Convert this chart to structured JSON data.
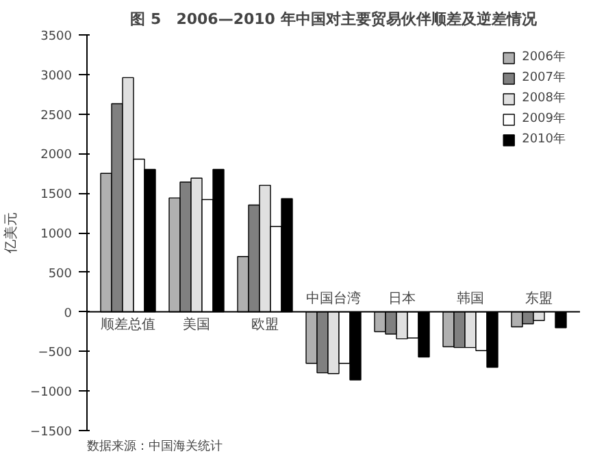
{
  "chart_data": {
    "type": "bar",
    "title": "图 5　2006—2010 年中国对主要贸易伙伴顺差及逆差情况",
    "ylabel": "亿美元",
    "categories": [
      "顺差总值",
      "美国",
      "欧盟",
      "中国台湾",
      "日本",
      "韩国",
      "东盟"
    ],
    "series": [
      {
        "name": "2006年",
        "color": "#b0b0b0",
        "values": [
          1750,
          1440,
          700,
          -650,
          -250,
          -440,
          -190
        ]
      },
      {
        "name": "2007年",
        "color": "#808080",
        "values": [
          2630,
          1640,
          1350,
          -770,
          -280,
          -450,
          -150
        ]
      },
      {
        "name": "2008年",
        "color": "#e0e0e0",
        "values": [
          2960,
          1690,
          1600,
          -780,
          -340,
          -450,
          -110
        ]
      },
      {
        "name": "2009年",
        "color": "#ffffff",
        "values": [
          1930,
          1420,
          1080,
          -650,
          -330,
          -490,
          null
        ]
      },
      {
        "name": "2010年",
        "color": "#000000",
        "values": [
          1800,
          1800,
          1430,
          -860,
          -570,
          -700,
          -200
        ]
      }
    ],
    "ylim": [
      -1500,
      3500
    ],
    "yticks": [
      -1500,
      -1000,
      -500,
      0,
      500,
      1000,
      1500,
      2000,
      2500,
      3000,
      3500
    ],
    "grid": false,
    "legend": "top right",
    "annotations": [
      "数据来源：中国海关统计"
    ]
  }
}
